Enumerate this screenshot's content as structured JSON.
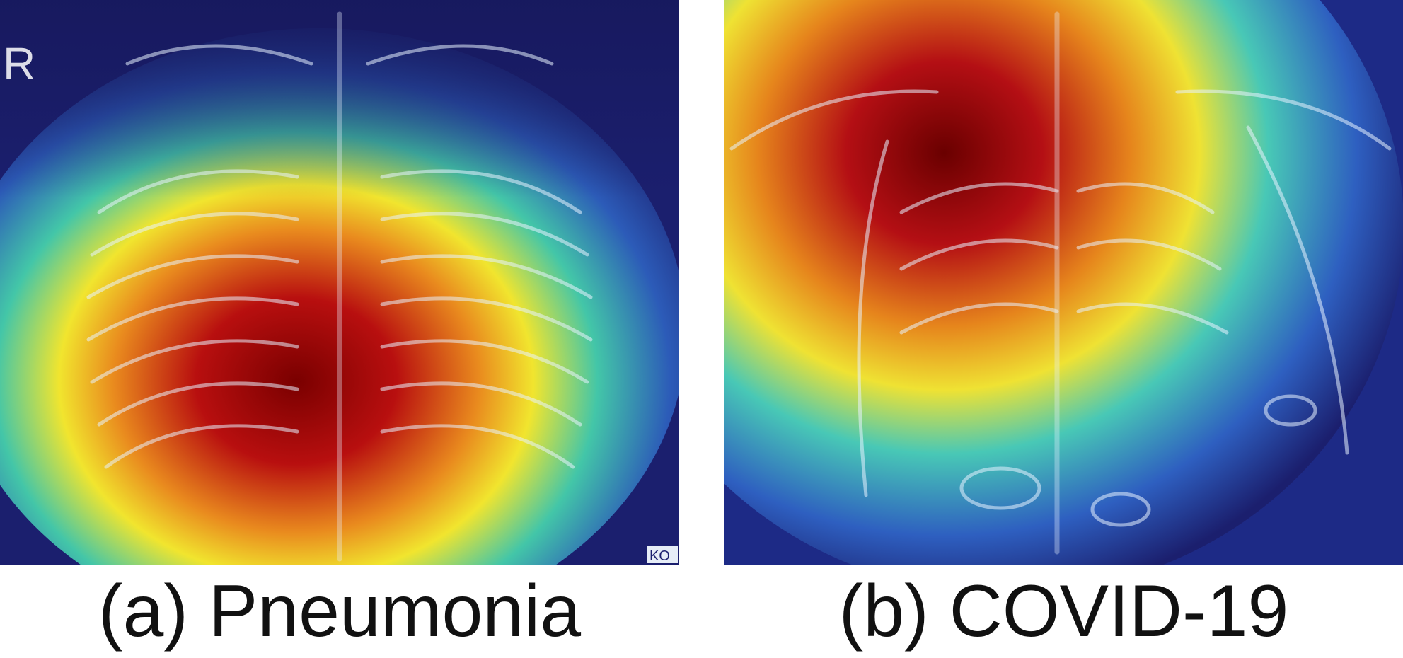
{
  "figure": {
    "panels": [
      {
        "caption": "(a) Pneumonia",
        "marker_text": "R",
        "corner_tag": "KO"
      },
      {
        "caption": "(b) COVID-19"
      }
    ]
  },
  "colors": {
    "background_dark": "#1a1f6e",
    "heat_red": "#b30d0d",
    "heat_yellow": "#f2e32a",
    "heat_cyan": "#3fc7c0",
    "bone_white": "#e8f2ff"
  }
}
